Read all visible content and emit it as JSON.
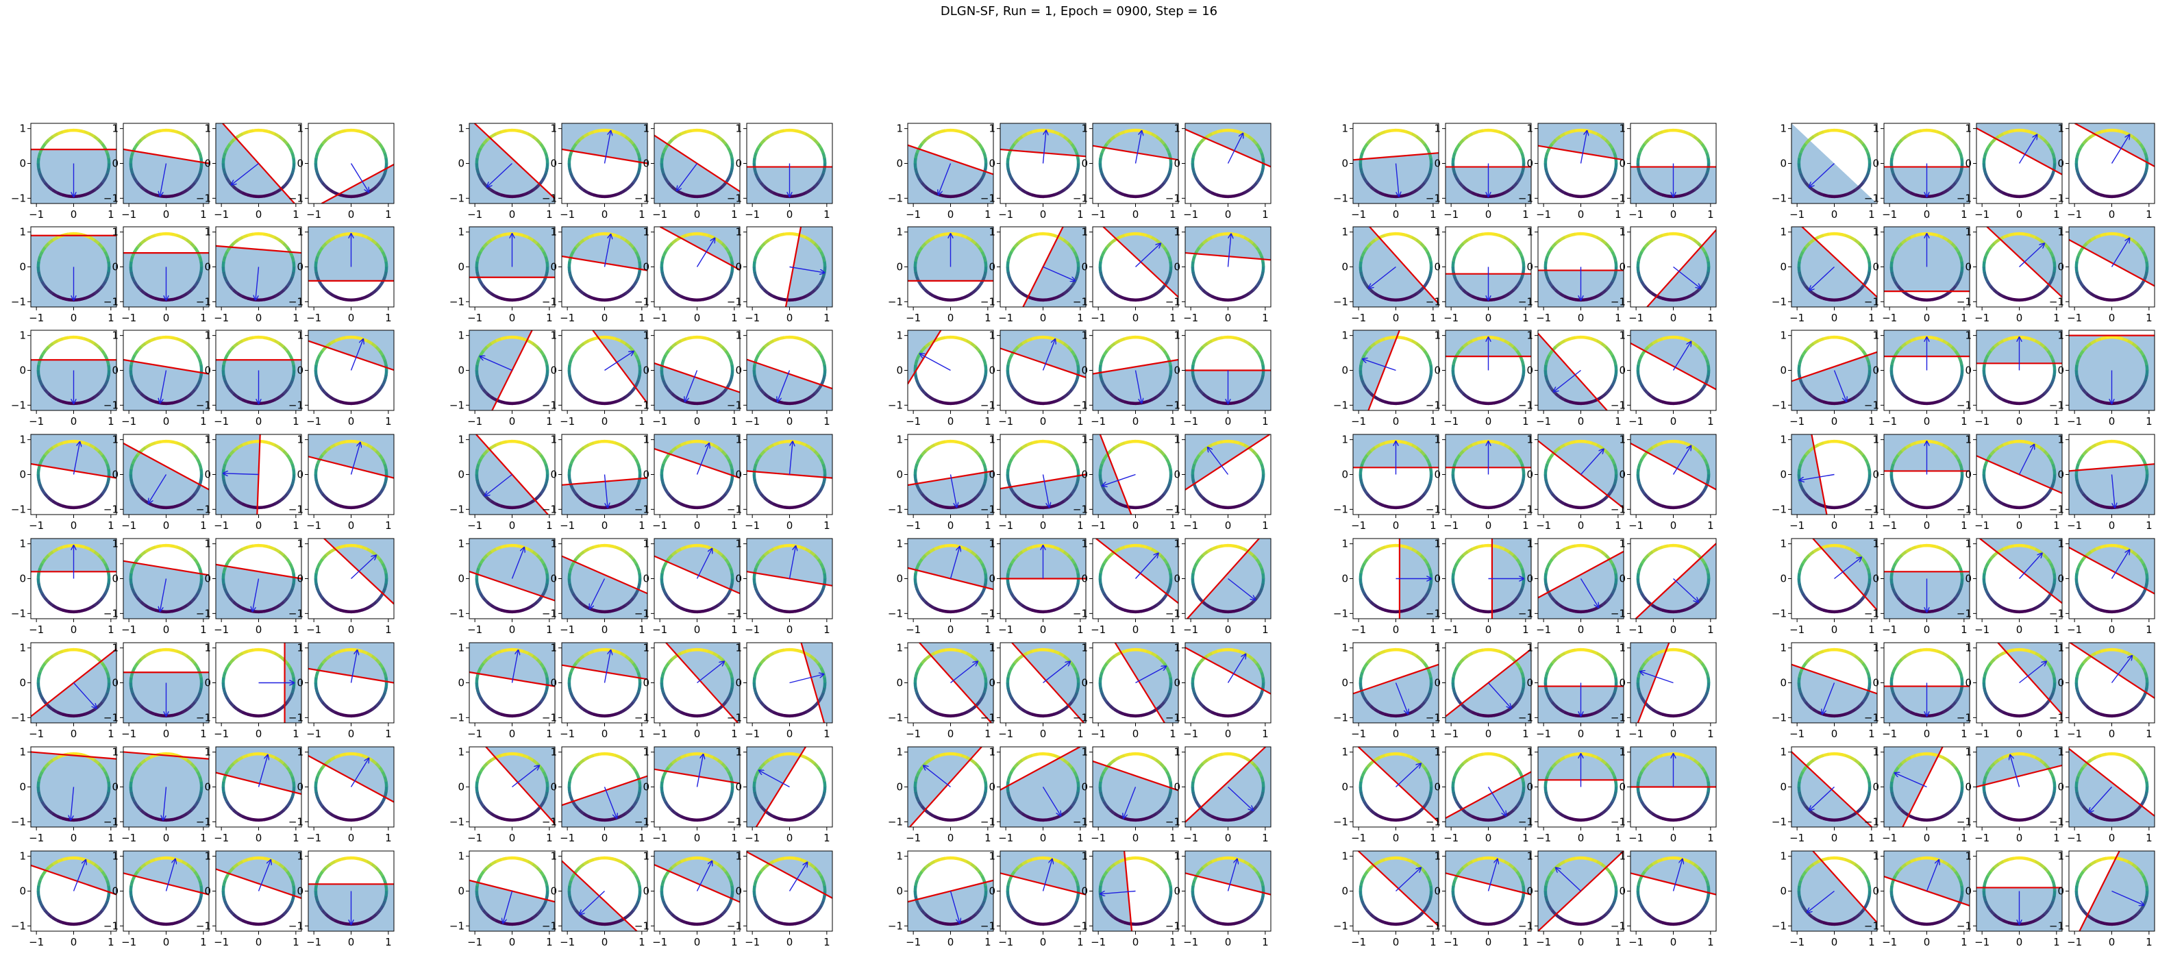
{
  "title": "DLGN-SF, Run = 1, Epoch = 0900, Step = 16",
  "chart_data": {
    "type": "scatter",
    "layout": {
      "groups": 5,
      "rows": 8,
      "cols_per_group": 4
    },
    "xlim": [
      -1.15,
      1.15
    ],
    "ylim": [
      -1.15,
      1.15
    ],
    "xticks": [
      -1,
      0,
      1
    ],
    "yticks": [
      -1,
      0,
      1
    ],
    "xticklabels": [
      "−1",
      "0",
      "1"
    ],
    "yticklabels": [
      "−1",
      "0",
      "1"
    ],
    "circle": {
      "radius": 0.95,
      "colormap": "viridis"
    },
    "colors": {
      "region": "#a4c5e0",
      "arrow": "#1f1fdf",
      "boundary": "#e00000",
      "frame": "#000000"
    },
    "panels": [
      [
        [
          -90,
          -0.4
        ],
        [
          -100,
          -0.2
        ],
        [
          -140,
          0.0
        ],
        [
          -60,
          0.6
        ]
      ],
      [
        [
          -135,
          -0.1
        ],
        [
          80,
          0.2
        ],
        [
          -125,
          0.0
        ],
        [
          -90,
          0.1
        ]
      ],
      [
        [
          -110,
          -0.1
        ],
        [
          85,
          0.3
        ],
        [
          80,
          0.3
        ],
        [
          65,
          0.4
        ]
      ],
      [
        [
          -85,
          -0.2
        ],
        [
          -90,
          0.1
        ],
        [
          80,
          0.3
        ],
        [
          -90,
          0.1
        ]
      ],
      [
        [
          -135,
          0.0
        ],
        [
          -90,
          0.1
        ],
        [
          60,
          0.3
        ],
        [
          60,
          0.5
        ]
      ],
      [
        [
          -90,
          -0.9
        ],
        [
          -90,
          -0.4
        ],
        [
          -95,
          -0.5
        ],
        [
          90,
          -0.4
        ]
      ],
      [
        [
          90,
          -0.3
        ],
        [
          80,
          0.1
        ],
        [
          60,
          0.5
        ],
        [
          -10,
          0.1
        ]
      ],
      [
        [
          90,
          -0.4
        ],
        [
          -25,
          0.0
        ],
        [
          45,
          0.2
        ],
        [
          85,
          0.3
        ]
      ],
      [
        [
          -140,
          -0.2
        ],
        [
          -90,
          0.2
        ],
        [
          -90,
          0.1
        ],
        [
          -40,
          0.2
        ]
      ],
      [
        [
          -135,
          -0.2
        ],
        [
          90,
          -0.7
        ],
        [
          45,
          0.2
        ],
        [
          60,
          0.1
        ]
      ],
      [
        [
          -90,
          -0.3
        ],
        [
          -100,
          -0.1
        ],
        [
          -90,
          -0.3
        ],
        [
          70,
          0.4
        ]
      ],
      [
        [
          155,
          0.0
        ],
        [
          35,
          0.4
        ],
        [
          -110,
          0.2
        ],
        [
          -110,
          0.1
        ]
      ],
      [
        [
          150,
          0.8
        ],
        [
          70,
          0.2
        ],
        [
          -80,
          -0.1
        ],
        [
          -90,
          0.0
        ]
      ],
      [
        [
          160,
          0.3
        ],
        [
          90,
          0.4
        ],
        [
          -140,
          0.2
        ],
        [
          60,
          0.1
        ]
      ],
      [
        [
          -70,
          -0.1
        ],
        [
          90,
          0.4
        ],
        [
          90,
          0.2
        ],
        [
          -90,
          -1.0
        ]
      ],
      [
        [
          80,
          0.1
        ],
        [
          -120,
          -0.2
        ],
        [
          178,
          0.0
        ],
        [
          75,
          0.2
        ]
      ],
      [
        [
          -140,
          0.0
        ],
        [
          -85,
          0.2
        ],
        [
          70,
          0.3
        ],
        [
          85,
          0.0
        ]
      ],
      [
        [
          -80,
          0.1
        ],
        [
          -80,
          0.2
        ],
        [
          -160,
          0.5
        ],
        [
          125,
          0.3
        ]
      ],
      [
        [
          90,
          0.2
        ],
        [
          90,
          0.2
        ],
        [
          50,
          0.0
        ],
        [
          60,
          0.2
        ]
      ],
      [
        [
          -170,
          0.4
        ],
        [
          90,
          0.1
        ],
        [
          65,
          0.0
        ],
        [
          -85,
          -0.2
        ]
      ],
      [
        [
          90,
          0.2
        ],
        [
          -100,
          -0.3
        ],
        [
          -100,
          -0.2
        ],
        [
          45,
          0.3
        ]
      ],
      [
        [
          70,
          -0.2
        ],
        [
          -115,
          -0.1
        ],
        [
          65,
          0.1
        ],
        [
          80,
          0.0
        ]
      ],
      [
        [
          75,
          0.0
        ],
        [
          90,
          0.0
        ],
        [
          50,
          0.2
        ],
        [
          -40,
          -0.1
        ]
      ],
      [
        [
          0,
          0.1
        ],
        [
          0,
          0.1
        ],
        [
          -60,
          -0.1
        ],
        [
          -45,
          0.1
        ]
      ],
      [
        [
          40,
          0.3
        ],
        [
          -90,
          -0.2
        ],
        [
          50,
          0.2
        ],
        [
          60,
          0.2
        ]
      ],
      [
        [
          -50,
          0.0
        ],
        [
          -90,
          -0.3
        ],
        [
          0,
          0.7
        ],
        [
          80,
          0.2
        ]
      ],
      [
        [
          80,
          0.1
        ],
        [
          80,
          0.3
        ],
        [
          40,
          0.1
        ],
        [
          15,
          0.6
        ]
      ],
      [
        [
          40,
          0.1
        ],
        [
          40,
          0.1
        ],
        [
          30,
          0.1
        ],
        [
          60,
          0.3
        ]
      ],
      [
        [
          -70,
          -0.1
        ],
        [
          -50,
          0.0
        ],
        [
          -90,
          0.1
        ],
        [
          160,
          0.5
        ]
      ],
      [
        [
          -110,
          -0.1
        ],
        [
          -90,
          0.1
        ],
        [
          40,
          0.3
        ],
        [
          55,
          0.3
        ]
      ],
      [
        [
          -95,
          -0.9
        ],
        [
          -95,
          -0.9
        ],
        [
          75,
          0.1
        ],
        [
          60,
          0.2
        ]
      ],
      [
        [
          40,
          0.2
        ],
        [
          -70,
          0.1
        ],
        [
          80,
          0.3
        ],
        [
          150,
          0.2
        ]
      ],
      [
        [
          140,
          0.1
        ],
        [
          -60,
          -0.5
        ],
        [
          -110,
          -0.3
        ],
        [
          -45,
          -0.1
        ]
      ],
      [
        [
          45,
          0.1
        ],
        [
          -60,
          0.2
        ],
        [
          90,
          0.2
        ],
        [
          90,
          0.0
        ]
      ],
      [
        [
          -135,
          0.1
        ],
        [
          155,
          0.1
        ],
        [
          105,
          0.3
        ],
        [
          -130,
          -0.1
        ]
      ],
      [
        [
          70,
          0.3
        ],
        [
          75,
          0.2
        ],
        [
          70,
          0.2
        ],
        [
          -90,
          -0.2
        ]
      ],
      [
        [
          -105,
          0.0
        ],
        [
          -135,
          0.2
        ],
        [
          65,
          0.2
        ],
        [
          60,
          0.4
        ]
      ],
      [
        [
          -75,
          0.0
        ],
        [
          75,
          0.2
        ],
        [
          -175,
          0.2
        ],
        [
          75,
          0.2
        ]
      ],
      [
        [
          45,
          0.1
        ],
        [
          75,
          0.2
        ],
        [
          135,
          0.0
        ],
        [
          75,
          0.2
        ]
      ],
      [
        [
          -140,
          -0.3
        ],
        [
          70,
          0.0
        ],
        [
          -90,
          -0.1
        ],
        [
          -25,
          -0.3
        ]
      ]
    ]
  }
}
